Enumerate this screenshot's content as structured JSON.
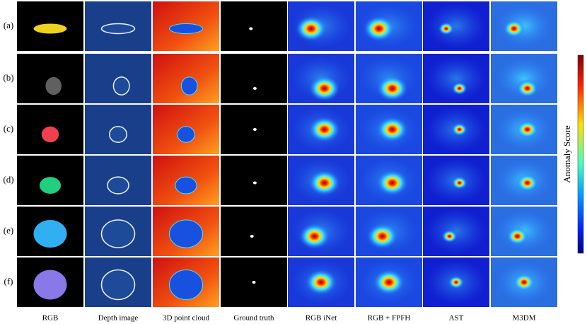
{
  "row_labels": [
    "(a)",
    "(b)",
    "(c)",
    "(d)",
    "(e)",
    "(f)"
  ],
  "column_labels": [
    "RGB",
    "Depth image",
    "3D point cloud",
    "Ground truth",
    "RGB iNet",
    "RGB + FPFH",
    "AST",
    "M3DM"
  ],
  "colorbar_label": "Anomaly Score"
}
